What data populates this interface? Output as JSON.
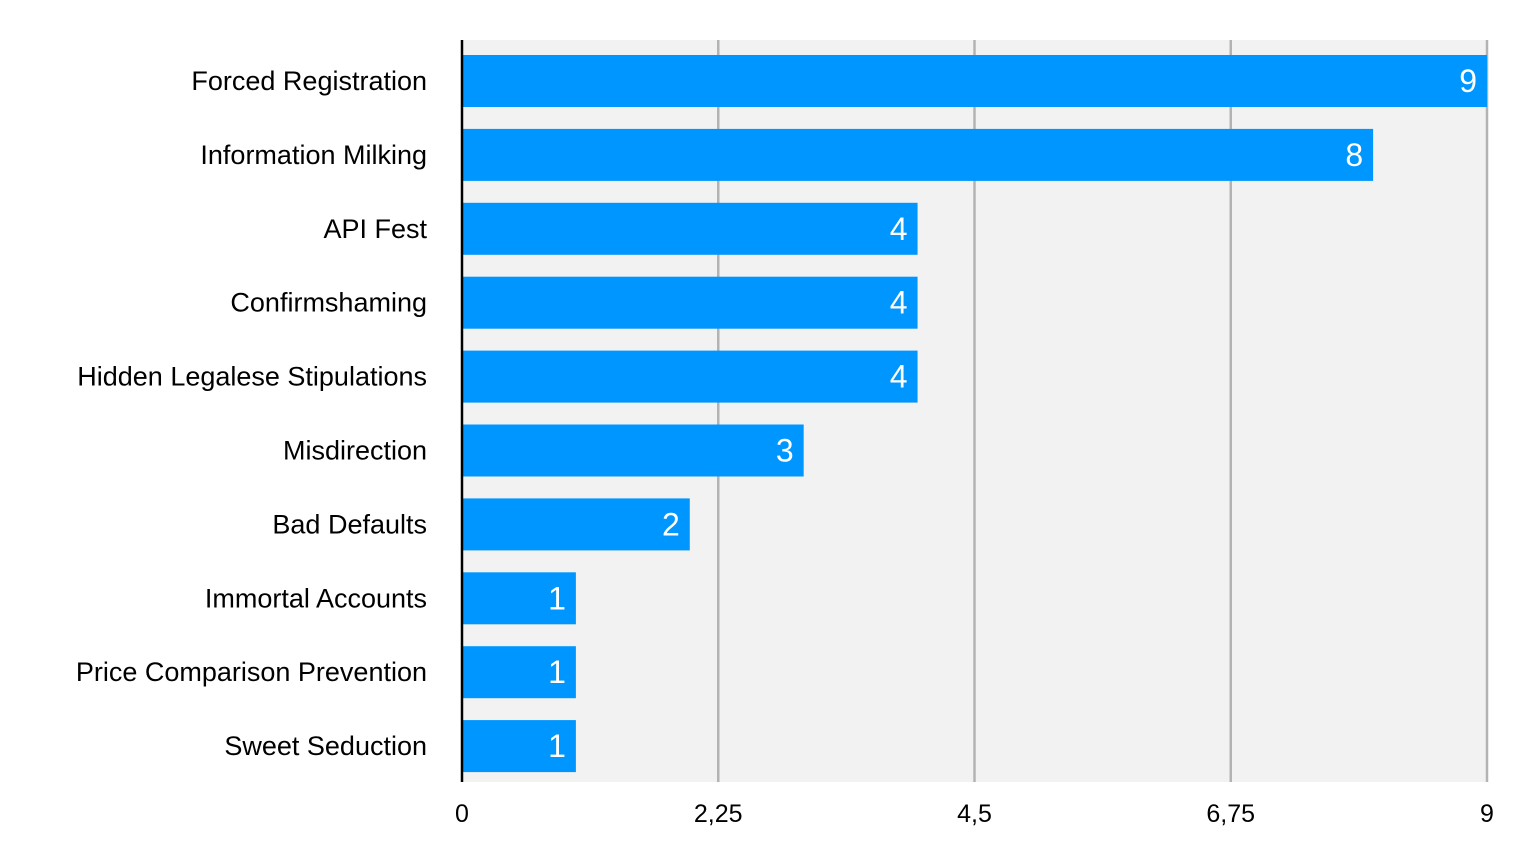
{
  "chart_data": {
    "type": "bar",
    "orientation": "horizontal",
    "categories": [
      "Forced Registration",
      "Information Milking",
      "API Fest",
      "Confirmshaming",
      "Hidden Legalese Stipulations",
      "Misdirection",
      "Bad Defaults",
      "Immortal Accounts",
      "Price Comparison Prevention",
      "Sweet Seduction"
    ],
    "values": [
      9,
      8,
      4,
      4,
      4,
      3,
      2,
      1,
      1,
      1
    ],
    "data_labels": [
      "9",
      "8",
      "4",
      "4",
      "4",
      "3",
      "2",
      "1",
      "1",
      "1"
    ],
    "xlim": [
      0,
      9
    ],
    "x_ticks": [
      0,
      2.25,
      4.5,
      6.75,
      9
    ],
    "x_tick_labels": [
      "0",
      "2,25",
      "4,5",
      "6,75",
      "9"
    ],
    "title": "",
    "xlabel": "",
    "ylabel": "",
    "grid": "vertical",
    "legend": "none",
    "colors": {
      "bar": "#0096FF",
      "plot_background": "#F2F2F2",
      "gridline": "#B3B3B3",
      "axis": "#000000",
      "data_label": "#FFFFFF",
      "text": "#000000"
    }
  }
}
